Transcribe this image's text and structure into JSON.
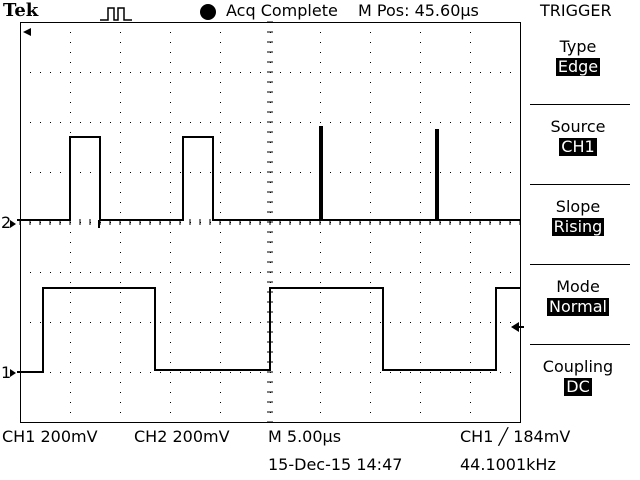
{
  "header": {
    "brand": "Tek",
    "trigger_icon": "pulse-trigger-icon",
    "acq_status_icon": "filled-circle-icon",
    "acq_status": "Acq Complete",
    "m_pos": "M Pos: 45.60µs"
  },
  "menu": {
    "title": "TRIGGER",
    "items": [
      {
        "label": "Type",
        "value": "Edge"
      },
      {
        "label": "Source",
        "value": "CH1"
      },
      {
        "label": "Slope",
        "value": "Rising"
      },
      {
        "label": "Mode",
        "value": "Normal"
      },
      {
        "label": "Coupling",
        "value": "DC"
      }
    ]
  },
  "markers": {
    "ch2": "2",
    "ch1": "1"
  },
  "footer": {
    "ch1_scale": "CH1  200mV",
    "ch2_scale": "CH2  200mV",
    "timebase": "M 5.00µs",
    "trigger": "CH1 ╱ 184mV",
    "date": "15-Dec-15 14:47",
    "frequency": "44.1001kHz"
  },
  "colors": {
    "background": "#ffffff",
    "trace": "#000000",
    "grid": "#000000"
  }
}
